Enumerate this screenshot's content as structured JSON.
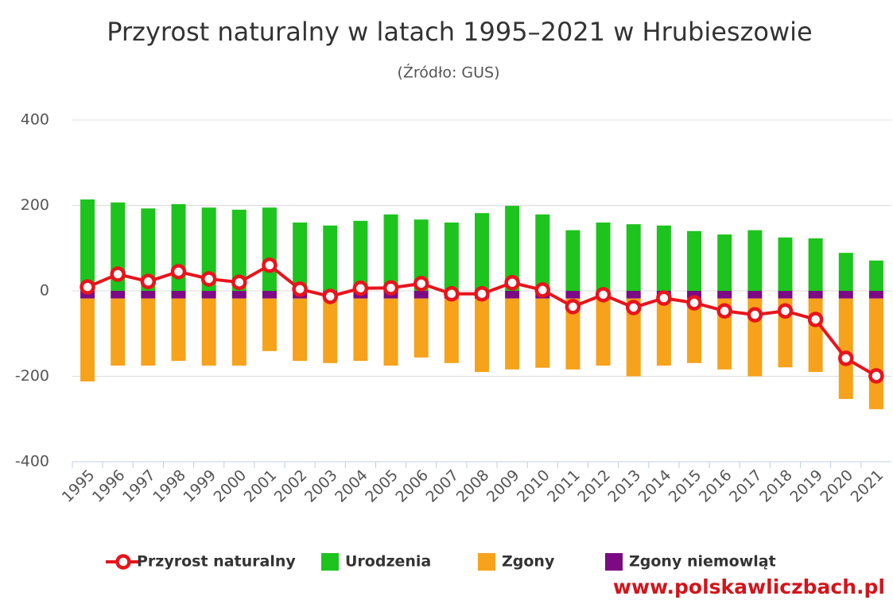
{
  "chart_data": {
    "type": "bar-line",
    "title": "Przyrost naturalny w latach 1995–2021 w Hrubieszowie",
    "subtitle": "(Źródło: GUS)",
    "watermark": "www.polskawliczbach.pl",
    "categories": [
      "1995",
      "1996",
      "1997",
      "1998",
      "1999",
      "2000",
      "2001",
      "2002",
      "2003",
      "2004",
      "2005",
      "2006",
      "2007",
      "2008",
      "2009",
      "2010",
      "2011",
      "2012",
      "2013",
      "2014",
      "2015",
      "2016",
      "2017",
      "2018",
      "2019",
      "2020",
      "2021"
    ],
    "ylim": [
      -400,
      400
    ],
    "yticks": [
      -400,
      -200,
      0,
      200,
      400
    ],
    "grid": true,
    "series": [
      {
        "name": "Przyrost naturalny",
        "type": "line",
        "color": "#e8141c",
        "values": [
          9,
          39,
          22,
          45,
          28,
          20,
          60,
          4,
          -13,
          6,
          7,
          17,
          -7,
          -7,
          19,
          2,
          -37,
          -9,
          -39,
          -17,
          -28,
          -47,
          -56,
          -47,
          -67,
          -158,
          -199
        ]
      },
      {
        "name": "Urodzenia",
        "type": "bar",
        "color": "#1dc41d",
        "values": [
          214,
          207,
          193,
          203,
          195,
          190,
          195,
          160,
          153,
          164,
          179,
          167,
          160,
          182,
          199,
          179,
          142,
          160,
          156,
          153,
          140,
          132,
          142,
          125,
          123,
          89,
          71
        ]
      },
      {
        "name": "Zgony",
        "type": "bar",
        "color": "#f7a21b",
        "values": [
          -194,
          -157,
          -157,
          -146,
          -157,
          -157,
          -123,
          -146,
          -151,
          -146,
          -157,
          -138,
          -151,
          -172,
          -166,
          -162,
          -166,
          -157,
          -182,
          -157,
          -151,
          -166,
          -182,
          -161,
          -172,
          -235,
          -259
        ]
      },
      {
        "name": "Zgony niemowląt",
        "type": "bar",
        "color": "#7b0a84",
        "values": [
          -18,
          -18,
          -18,
          -18,
          -18,
          -18,
          -18,
          -18,
          -18,
          -18,
          -18,
          -18,
          -18,
          -18,
          -18,
          -18,
          -18,
          -18,
          -18,
          -18,
          -18,
          -18,
          -18,
          -18,
          -18,
          -18,
          -18
        ]
      }
    ]
  }
}
